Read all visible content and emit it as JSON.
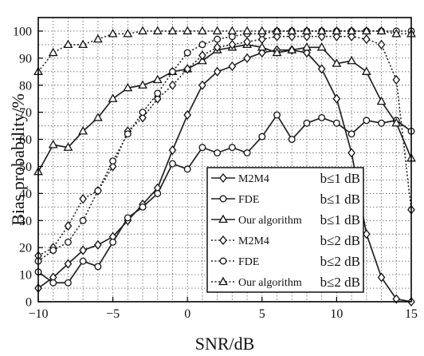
{
  "chart_data": {
    "type": "line",
    "xlabel": "SNR/dB",
    "ylabel": "Bias probability/%",
    "xlim": [
      -10,
      15
    ],
    "ylim": [
      0,
      105
    ],
    "xticks": [
      -10,
      -5,
      0,
      5,
      10,
      15
    ],
    "yticks": [
      0,
      10,
      20,
      30,
      40,
      50,
      60,
      70,
      80,
      90,
      100
    ],
    "grid": true,
    "legend_position": "lower-center",
    "series": [
      {
        "name": "M2M4",
        "condition": "b≤1 dB",
        "line": "solid",
        "marker": "diamond",
        "color": "#222222",
        "x": [
          -10,
          -9,
          -8,
          -7,
          -6,
          -5,
          -4,
          -3,
          -2,
          -1,
          0,
          1,
          2,
          3,
          4,
          5,
          6,
          7,
          8,
          9,
          10,
          11,
          12,
          13,
          14,
          15
        ],
        "y": [
          5,
          9,
          14,
          19,
          21,
          24,
          30,
          36,
          42,
          56,
          69,
          80,
          85,
          87,
          90,
          92,
          93,
          93,
          92,
          86,
          75,
          55,
          25,
          9,
          1,
          0
        ]
      },
      {
        "name": "FDE",
        "condition": "b≤1 dB",
        "line": "solid",
        "marker": "circle",
        "color": "#222222",
        "x": [
          -10,
          -9,
          -8,
          -7,
          -6,
          -5,
          -4,
          -3,
          -2,
          -1,
          0,
          1,
          2,
          3,
          4,
          5,
          6,
          7,
          8,
          9,
          10,
          11,
          12,
          13,
          14,
          15
        ],
        "y": [
          11,
          7,
          7,
          15,
          13,
          22,
          31,
          35,
          40,
          51,
          49,
          57,
          55,
          57,
          55,
          61,
          69,
          60,
          66,
          68,
          66,
          62,
          67,
          66,
          67,
          63
        ]
      },
      {
        "name": "Our algorithm",
        "condition": "b≤1 dB",
        "line": "solid",
        "marker": "triangle",
        "color": "#222222",
        "x": [
          -10,
          -9,
          -8,
          -7,
          -6,
          -5,
          -4,
          -3,
          -2,
          -1,
          0,
          1,
          2,
          3,
          4,
          5,
          6,
          7,
          8,
          9,
          10,
          11,
          12,
          13,
          14,
          15
        ],
        "y": [
          48,
          58,
          57,
          63,
          68,
          75,
          79,
          80,
          82,
          85,
          86,
          89,
          93,
          94,
          95,
          94,
          92,
          93,
          94,
          94,
          88,
          89,
          85,
          74,
          66,
          53
        ]
      },
      {
        "name": "M2M4",
        "condition": "b≤2 dB",
        "line": "dotted",
        "marker": "diamond",
        "color": "#222222",
        "x": [
          -10,
          -9,
          -8,
          -7,
          -6,
          -5,
          -4,
          -3,
          -2,
          -1,
          0,
          1,
          2,
          3,
          4,
          5,
          6,
          7,
          8,
          9,
          10,
          11,
          12,
          13,
          14,
          15
        ],
        "y": [
          17,
          20,
          28,
          38,
          41,
          50,
          63,
          68,
          75,
          80,
          86,
          91,
          94,
          95,
          96,
          97,
          98,
          98,
          98,
          98,
          98,
          98,
          97,
          95,
          82,
          34
        ]
      },
      {
        "name": "FDE",
        "condition": "b≤2 dB",
        "line": "dotted",
        "marker": "circle",
        "color": "#222222",
        "x": [
          -10,
          -9,
          -8,
          -7,
          -6,
          -5,
          -4,
          -3,
          -2,
          -1,
          0,
          1,
          2,
          3,
          4,
          5,
          6,
          7,
          8,
          9,
          10,
          11,
          12,
          13,
          14,
          15
        ],
        "y": [
          15,
          19,
          22,
          30,
          41,
          52,
          62,
          70,
          77,
          85,
          92,
          95,
          97,
          98,
          99,
          99,
          100,
          100,
          100,
          100,
          100,
          100,
          100,
          100,
          100,
          100
        ]
      },
      {
        "name": "Our algorithm",
        "condition": "b≤2 dB",
        "line": "dotted",
        "marker": "triangle",
        "color": "#222222",
        "x": [
          -10,
          -9,
          -8,
          -7,
          -6,
          -5,
          -4,
          -3,
          -2,
          -1,
          0,
          1,
          2,
          3,
          4,
          5,
          6,
          7,
          8,
          9,
          10,
          11,
          12,
          13,
          14,
          15
        ],
        "y": [
          85,
          92,
          95,
          95,
          97,
          99,
          99,
          100,
          100,
          100,
          100,
          100,
          100,
          100,
          100,
          100,
          100,
          100,
          100,
          100,
          100,
          100,
          100,
          100,
          99,
          99
        ]
      }
    ]
  }
}
